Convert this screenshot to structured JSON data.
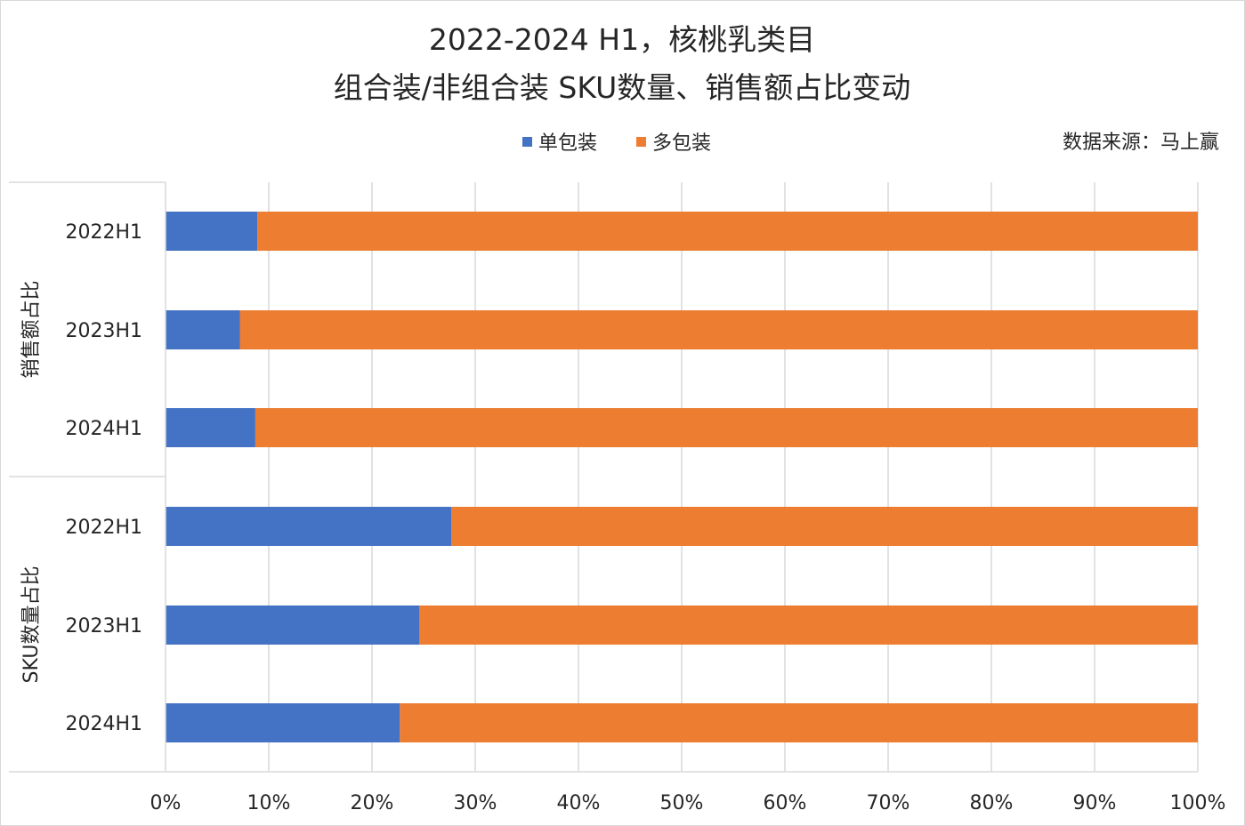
{
  "chart_data": {
    "type": "bar",
    "orientation": "horizontal",
    "stacked": "percent",
    "title_line1": "2022-2024 H1，核桃乳类目",
    "title_line2": "组合装/非组合装 SKU数量、销售额占比变动",
    "source": "数据来源：马上赢",
    "groups": [
      {
        "name": "销售额占比",
        "categories": [
          "2022H1",
          "2023H1",
          "2024H1"
        ]
      },
      {
        "name": "SKU数量占比",
        "categories": [
          "2022H1",
          "2023H1",
          "2024H1"
        ]
      }
    ],
    "series": [
      {
        "name": "单包装",
        "color": "#4472C4",
        "values": [
          8.9,
          7.2,
          8.7,
          27.7,
          24.6,
          22.7
        ]
      },
      {
        "name": "多包装",
        "color": "#ED7D31",
        "values": [
          91.1,
          92.8,
          91.3,
          72.3,
          75.4,
          77.3
        ]
      }
    ],
    "xlim": [
      0,
      100
    ],
    "xticks": [
      "0%",
      "10%",
      "20%",
      "30%",
      "40%",
      "50%",
      "60%",
      "70%",
      "80%",
      "90%",
      "100%"
    ],
    "grid": true,
    "legend_position": "top-center"
  }
}
